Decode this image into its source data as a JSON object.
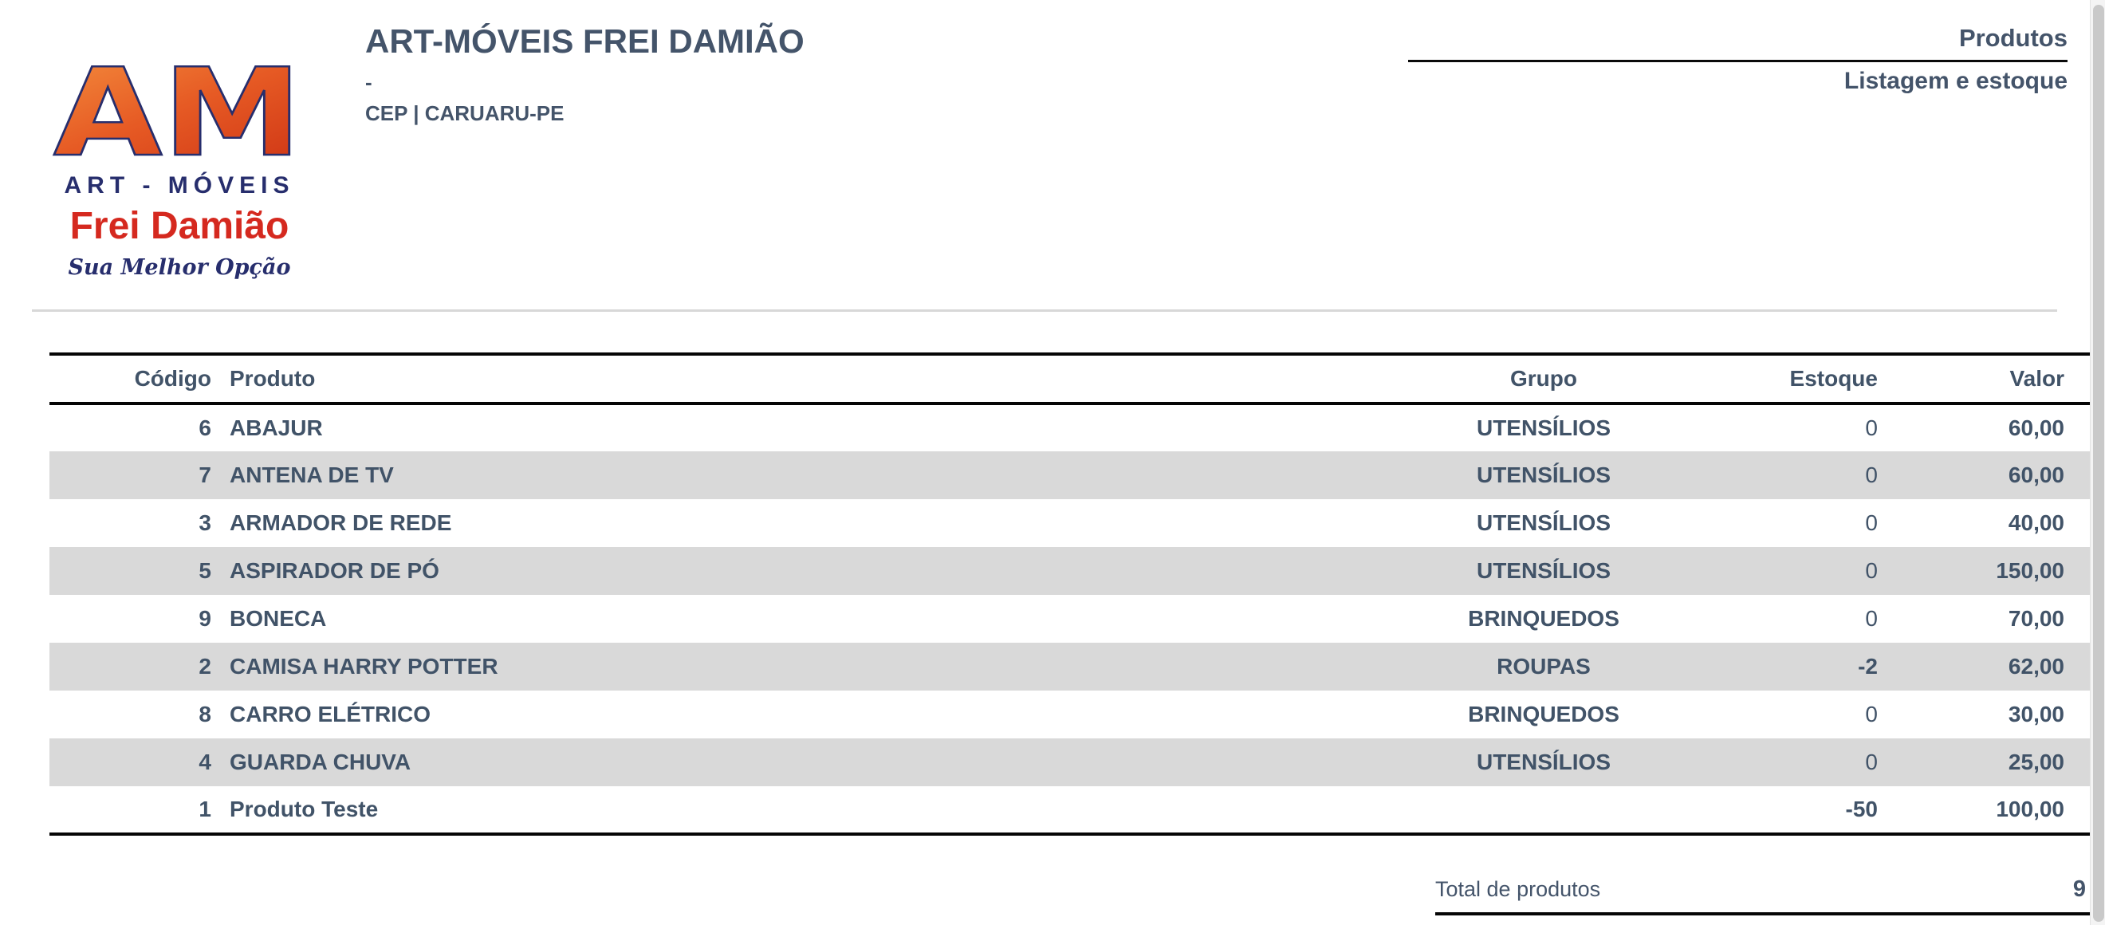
{
  "logo": {
    "monogram": "AM",
    "line1": "ART - MÓVEIS",
    "line2": "Frei Damião",
    "tagline": "Sua Melhor Opção",
    "colors": {
      "orange_light": "#f5913f",
      "orange_deep": "#d23a17",
      "navy": "#272e6d",
      "red": "#d5291f"
    }
  },
  "header": {
    "company_name": "ART-MÓVEIS FREI DAMIÃO",
    "company_dash": "-",
    "company_city": "CEP | CARUARU-PE",
    "report_title": "Produtos",
    "report_subtitle": "Listagem e estoque"
  },
  "table": {
    "columns": [
      "Código",
      "Produto",
      "Grupo",
      "Estoque",
      "Valor"
    ],
    "rows": [
      {
        "codigo": "6",
        "produto": "ABAJUR",
        "grupo": "UTENSÍLIOS",
        "estoque": "0",
        "valor": "60,00"
      },
      {
        "codigo": "7",
        "produto": "ANTENA DE TV",
        "grupo": "UTENSÍLIOS",
        "estoque": "0",
        "valor": "60,00"
      },
      {
        "codigo": "3",
        "produto": "ARMADOR DE REDE",
        "grupo": "UTENSÍLIOS",
        "estoque": "0",
        "valor": "40,00"
      },
      {
        "codigo": "5",
        "produto": "ASPIRADOR DE PÓ",
        "grupo": "UTENSÍLIOS",
        "estoque": "0",
        "valor": "150,00"
      },
      {
        "codigo": "9",
        "produto": "BONECA",
        "grupo": "BRINQUEDOS",
        "estoque": "0",
        "valor": "70,00"
      },
      {
        "codigo": "2",
        "produto": "CAMISA HARRY POTTER",
        "grupo": "ROUPAS",
        "estoque": "-2",
        "valor": "62,00"
      },
      {
        "codigo": "8",
        "produto": "CARRO ELÉTRICO",
        "grupo": "BRINQUEDOS",
        "estoque": "0",
        "valor": "30,00"
      },
      {
        "codigo": "4",
        "produto": "GUARDA CHUVA",
        "grupo": "UTENSÍLIOS",
        "estoque": "0",
        "valor": "25,00"
      },
      {
        "codigo": "1",
        "produto": "Produto Teste",
        "grupo": "",
        "estoque": "-50",
        "valor": "100,00"
      }
    ]
  },
  "footer": {
    "total_label": "Total de produtos",
    "total_value": "9"
  },
  "colors": {
    "text_slate": "#44546a",
    "table_text": "#415368",
    "row_alt_gray": "#d9d9d9",
    "rule_black": "#050505",
    "divider_gray": "#d8d8d8"
  }
}
